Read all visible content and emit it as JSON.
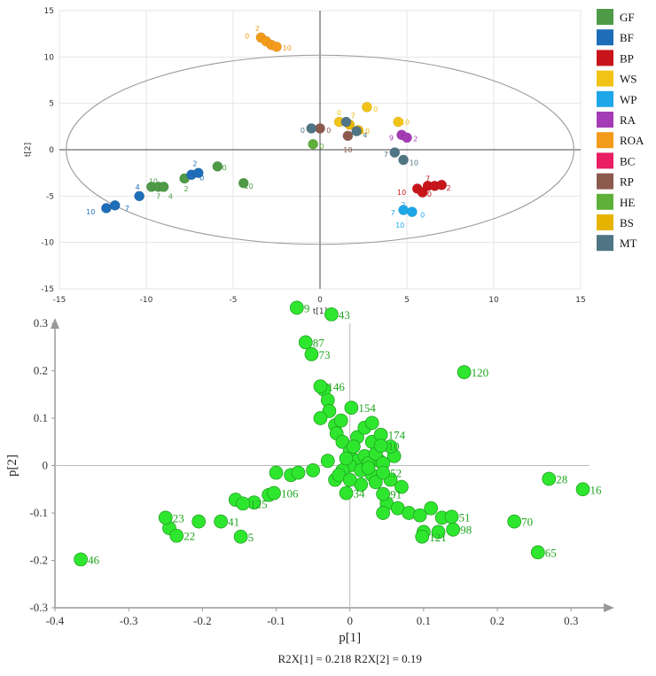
{
  "colors": {
    "GF": "#4e9a47",
    "BF": "#1e6db8",
    "BP": "#c8151b",
    "WS": "#f2c317",
    "WP": "#1ea7e8",
    "RA": "#a33cb5",
    "ROA": "#f39b1a",
    "BC": "#e91e63",
    "RP": "#8b5a4c",
    "HE": "#5fb03a",
    "BS": "#e6b400",
    "MT": "#4f7585",
    "loading": "#2fe62f",
    "loading_label": "#1fa51f"
  },
  "chart_data": [
    {
      "type": "scatter",
      "title": "",
      "xlabel": "t[1]",
      "ylabel": "t[2]",
      "xlim": [
        -15,
        15
      ],
      "ylim": [
        -15,
        15
      ],
      "xticks": [
        "-15",
        "-10",
        "-5",
        "0",
        "5",
        "10",
        "15"
      ],
      "yticks": [
        "15",
        "10",
        "5",
        "0",
        "-5",
        "-10",
        "-15"
      ],
      "grid": true,
      "ellipse": true,
      "legend_position": "right",
      "legend": [
        "GF",
        "BF",
        "BP",
        "WS",
        "WP",
        "RA",
        "ROA",
        "BC",
        "RP",
        "HE",
        "BS",
        "MT"
      ],
      "series": [
        {
          "name": "GF",
          "points": [
            {
              "x": -9.7,
              "y": -4.0
            },
            {
              "x": -9.3,
              "y": -4.0
            },
            {
              "x": -9.0,
              "y": -4.0
            },
            {
              "x": -7.8,
              "y": -3.1
            },
            {
              "x": -5.9,
              "y": -1.8
            },
            {
              "x": -4.4,
              "y": -3.6
            }
          ],
          "labels": [
            {
              "text": "10",
              "x": -9.6,
              "y": -3.4
            },
            {
              "text": "7",
              "x": -9.3,
              "y": -5.0
            },
            {
              "text": "4",
              "x": -8.6,
              "y": -5.0
            },
            {
              "text": "2",
              "x": -7.7,
              "y": -4.2
            },
            {
              "text": "0",
              "x": -5.5,
              "y": -1.9
            },
            {
              "text": "10",
              "x": -4.1,
              "y": -3.9
            }
          ]
        },
        {
          "name": "BF",
          "points": [
            {
              "x": -12.3,
              "y": -6.3
            },
            {
              "x": -11.8,
              "y": -6.0
            },
            {
              "x": -10.4,
              "y": -5.0
            },
            {
              "x": -7.4,
              "y": -2.7
            },
            {
              "x": -7.0,
              "y": -2.5
            }
          ],
          "labels": [
            {
              "text": "10",
              "x": -13.2,
              "y": -6.7
            },
            {
              "text": "7",
              "x": -11.1,
              "y": -6.3
            },
            {
              "text": "4",
              "x": -10.5,
              "y": -4.0
            },
            {
              "text": "2",
              "x": -7.2,
              "y": -1.5
            },
            {
              "text": "0",
              "x": -6.8,
              "y": -3.0
            }
          ]
        },
        {
          "name": "BP",
          "points": [
            {
              "x": 5.6,
              "y": -4.2
            },
            {
              "x": 5.9,
              "y": -4.6
            },
            {
              "x": 6.2,
              "y": -3.9
            },
            {
              "x": 6.6,
              "y": -3.9
            },
            {
              "x": 7.0,
              "y": -3.8
            }
          ],
          "labels": [
            {
              "text": "10",
              "x": 4.7,
              "y": -4.6
            },
            {
              "text": "7",
              "x": 6.2,
              "y": -3.1
            },
            {
              "text": "0",
              "x": 6.3,
              "y": -4.8
            },
            {
              "text": "2",
              "x": 7.4,
              "y": -4.1
            }
          ]
        },
        {
          "name": "WS",
          "points": [
            {
              "x": 1.1,
              "y": 3.0
            },
            {
              "x": 2.7,
              "y": 4.6
            },
            {
              "x": 4.5,
              "y": 3.0
            }
          ],
          "labels": [
            {
              "text": "0",
              "x": 1.1,
              "y": 4.0
            },
            {
              "text": "0",
              "x": 3.2,
              "y": 4.4
            },
            {
              "text": "10",
              "x": 4.9,
              "y": 3.0
            }
          ]
        },
        {
          "name": "WP",
          "points": [
            {
              "x": 4.8,
              "y": -6.5
            },
            {
              "x": 5.3,
              "y": -6.7
            }
          ],
          "labels": [
            {
              "text": "2",
              "x": 4.8,
              "y": -5.9
            },
            {
              "text": "7",
              "x": 4.2,
              "y": -6.8
            },
            {
              "text": "0",
              "x": 5.9,
              "y": -7.0
            },
            {
              "text": "10",
              "x": 4.6,
              "y": -8.1
            }
          ]
        },
        {
          "name": "RA",
          "points": [
            {
              "x": 4.7,
              "y": 1.6
            },
            {
              "x": 5.0,
              "y": 1.3
            }
          ],
          "labels": [
            {
              "text": "9",
              "x": 4.1,
              "y": 1.3
            },
            {
              "text": "0",
              "x": 4.6,
              "y": 1.6
            },
            {
              "text": "2",
              "x": 5.5,
              "y": 1.2
            }
          ]
        },
        {
          "name": "ROA",
          "points": [
            {
              "x": -3.4,
              "y": 12.1
            },
            {
              "x": -3.1,
              "y": 11.7
            },
            {
              "x": -2.8,
              "y": 11.3
            },
            {
              "x": -2.5,
              "y": 11.1
            }
          ],
          "labels": [
            {
              "text": "2",
              "x": -3.6,
              "y": 13.1
            },
            {
              "text": "0",
              "x": -4.2,
              "y": 12.3
            },
            {
              "text": "10",
              "x": -1.9,
              "y": 11.0
            }
          ]
        },
        {
          "name": "BC",
          "points": [],
          "labels": []
        },
        {
          "name": "RP",
          "points": [
            {
              "x": 0.0,
              "y": 2.3
            },
            {
              "x": 1.6,
              "y": 1.5
            }
          ],
          "labels": [
            {
              "text": "0",
              "x": 0.5,
              "y": 2.1
            },
            {
              "text": "10",
              "x": 1.6,
              "y": 0.0
            }
          ]
        },
        {
          "name": "HE",
          "points": [
            {
              "x": -0.4,
              "y": 0.6
            }
          ],
          "labels": [
            {
              "text": "0",
              "x": 0.1,
              "y": 0.4
            }
          ]
        },
        {
          "name": "BS",
          "points": [
            {
              "x": 1.7,
              "y": 2.7
            },
            {
              "x": 2.2,
              "y": 2.1
            }
          ],
          "labels": [
            {
              "text": "7",
              "x": 1.9,
              "y": 3.7
            },
            {
              "text": "10",
              "x": 2.6,
              "y": 2.0
            }
          ]
        },
        {
          "name": "MT",
          "points": [
            {
              "x": -0.5,
              "y": 2.3
            },
            {
              "x": 1.5,
              "y": 3.0
            },
            {
              "x": 2.1,
              "y": 2.0
            },
            {
              "x": 4.3,
              "y": -0.3
            },
            {
              "x": 4.8,
              "y": -1.1
            }
          ],
          "labels": [
            {
              "text": "0",
              "x": -1.0,
              "y": 2.1
            },
            {
              "text": "4",
              "x": 2.6,
              "y": 1.6
            },
            {
              "text": "7",
              "x": 3.8,
              "y": -0.5
            },
            {
              "text": "10",
              "x": 5.4,
              "y": -1.4
            }
          ]
        }
      ]
    },
    {
      "type": "scatter",
      "title": "",
      "xlabel": "p[1]",
      "ylabel": "p[2]",
      "xlim": [
        -0.4,
        0.3
      ],
      "ylim": [
        -0.3,
        0.3
      ],
      "xticks": [
        "-0.4",
        "-0.3",
        "-0.2",
        "-0.1",
        "0",
        "0.1",
        "0.2",
        "0.3"
      ],
      "yticks": [
        "0.3",
        "0.2",
        "0.1",
        "0",
        "-0.1",
        "-0.2",
        "-0.3"
      ],
      "footer": "R2X[1] = 0.218 R2X[2] = 0.19",
      "labeled_points": [
        {
          "label": "9",
          "x": -0.072,
          "y": 0.333
        },
        {
          "label": "43",
          "x": -0.025,
          "y": 0.319
        },
        {
          "label": "87",
          "x": -0.06,
          "y": 0.26
        },
        {
          "label": "73",
          "x": -0.052,
          "y": 0.235
        },
        {
          "label": "120",
          "x": 0.155,
          "y": 0.197
        },
        {
          "label": "146",
          "x": -0.04,
          "y": 0.167
        },
        {
          "label": "154",
          "x": 0.002,
          "y": 0.122
        },
        {
          "label": "174",
          "x": 0.042,
          "y": 0.065
        },
        {
          "label": "28",
          "x": 0.27,
          "y": -0.028
        },
        {
          "label": "16",
          "x": 0.316,
          "y": -0.05
        },
        {
          "label": "70",
          "x": 0.223,
          "y": -0.118
        },
        {
          "label": "65",
          "x": 0.255,
          "y": -0.183
        },
        {
          "label": "51",
          "x": 0.138,
          "y": -0.108
        },
        {
          "label": "98",
          "x": 0.14,
          "y": -0.135
        },
        {
          "label": "121",
          "x": 0.098,
          "y": -0.15
        },
        {
          "label": "46",
          "x": -0.365,
          "y": -0.198
        },
        {
          "label": "23",
          "x": -0.25,
          "y": -0.11
        },
        {
          "label": "22",
          "x": -0.235,
          "y": -0.148
        },
        {
          "label": "41",
          "x": -0.175,
          "y": -0.118
        },
        {
          "label": "5",
          "x": -0.148,
          "y": -0.15
        },
        {
          "label": "125",
          "x": -0.145,
          "y": -0.08
        },
        {
          "label": "106",
          "x": -0.103,
          "y": -0.058
        },
        {
          "label": "34",
          "x": -0.005,
          "y": -0.058
        },
        {
          "label": "91",
          "x": 0.045,
          "y": -0.06
        },
        {
          "label": "10",
          "x": 0.042,
          "y": 0.042
        },
        {
          "label": "52",
          "x": 0.045,
          "y": -0.015
        }
      ],
      "cluster_points": [
        {
          "x": -0.245,
          "y": -0.132
        },
        {
          "x": -0.205,
          "y": -0.118
        },
        {
          "x": -0.155,
          "y": -0.072
        },
        {
          "x": -0.13,
          "y": -0.078
        },
        {
          "x": -0.11,
          "y": -0.062
        },
        {
          "x": -0.1,
          "y": -0.015
        },
        {
          "x": -0.08,
          "y": -0.02
        },
        {
          "x": -0.07,
          "y": -0.015
        },
        {
          "x": -0.035,
          "y": 0.16
        },
        {
          "x": -0.03,
          "y": 0.138
        },
        {
          "x": -0.028,
          "y": 0.115
        },
        {
          "x": -0.04,
          "y": 0.1
        },
        {
          "x": -0.02,
          "y": 0.085
        },
        {
          "x": -0.012,
          "y": 0.095
        },
        {
          "x": -0.018,
          "y": 0.068
        },
        {
          "x": -0.01,
          "y": 0.05
        },
        {
          "x": 0.0,
          "y": 0.03
        },
        {
          "x": 0.01,
          "y": 0.06
        },
        {
          "x": 0.02,
          "y": 0.08
        },
        {
          "x": 0.03,
          "y": 0.05
        },
        {
          "x": 0.04,
          "y": 0.01
        },
        {
          "x": 0.01,
          "y": 0.01
        },
        {
          "x": 0.0,
          "y": 0.0
        },
        {
          "x": 0.02,
          "y": 0.02
        },
        {
          "x": 0.03,
          "y": -0.02
        },
        {
          "x": -0.01,
          "y": -0.01
        },
        {
          "x": -0.03,
          "y": 0.01
        },
        {
          "x": -0.05,
          "y": -0.01
        },
        {
          "x": -0.02,
          "y": -0.03
        },
        {
          "x": 0.015,
          "y": -0.04
        },
        {
          "x": 0.06,
          "y": 0.02
        },
        {
          "x": 0.055,
          "y": -0.03
        },
        {
          "x": 0.07,
          "y": -0.045
        },
        {
          "x": 0.05,
          "y": -0.08
        },
        {
          "x": 0.045,
          "y": -0.1
        },
        {
          "x": 0.065,
          "y": -0.09
        },
        {
          "x": 0.08,
          "y": -0.1
        },
        {
          "x": 0.095,
          "y": -0.105
        },
        {
          "x": 0.1,
          "y": -0.14
        },
        {
          "x": 0.11,
          "y": -0.09
        },
        {
          "x": 0.125,
          "y": -0.11
        },
        {
          "x": 0.12,
          "y": -0.14
        },
        {
          "x": 0.025,
          "y": 0.005
        },
        {
          "x": 0.035,
          "y": 0.025
        },
        {
          "x": 0.005,
          "y": 0.04
        },
        {
          "x": -0.005,
          "y": 0.015
        },
        {
          "x": 0.015,
          "y": -0.01
        },
        {
          "x": 0.025,
          "y": -0.005
        },
        {
          "x": 0.045,
          "y": 0.005
        },
        {
          "x": 0.035,
          "y": -0.035
        },
        {
          "x": -0.015,
          "y": -0.02
        },
        {
          "x": 0.0,
          "y": -0.03
        },
        {
          "x": 0.055,
          "y": 0.04
        },
        {
          "x": 0.03,
          "y": 0.09
        }
      ]
    }
  ]
}
